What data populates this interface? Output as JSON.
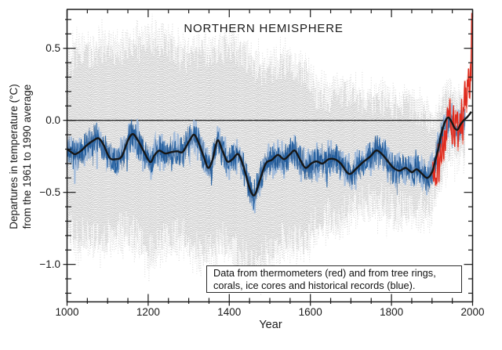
{
  "chart_data": {
    "type": "line",
    "title": "NORTHERN HEMISPHERE",
    "xlabel": "Year",
    "ylabel_line1": "Departures in temperature (°C)",
    "ylabel_line2": "from the 1961 to 1990 average",
    "legend_line1": "Data from thermometers (red) and from tree rings,",
    "legend_line2": "corals, ice cores and historical records (blue).",
    "xlim": [
      1000,
      2000
    ],
    "ylim": [
      -1.26,
      0.77
    ],
    "x_major_ticks": [
      1000,
      1200,
      1400,
      1600,
      1800,
      2000
    ],
    "x_tick_labels": [
      "1000",
      "1200",
      "1400",
      "1600",
      "1800",
      "2000"
    ],
    "x_minor_step": 50,
    "y_major_ticks": [
      0.5,
      0.0,
      -0.5,
      -1.0
    ],
    "y_tick_labels": [
      "0.5",
      "0.0",
      "−0.5",
      "−1.0"
    ],
    "y_minor_step": 0.1,
    "grid": false,
    "zero_line": 0.0,
    "legend_position": "bottom-right-inside",
    "colors": {
      "frame": "#1a1a1a",
      "zero_line": "#2b2b2b",
      "band_gray": "#c8c8c8",
      "band_fuzz": "#b4b4b4",
      "annual_blue": "#2a65a4",
      "annual_blue_light": "#9cb8da",
      "annual_blue_dark": "#1d4e87",
      "smoothed_black": "#161616",
      "instrumental_red": "#df2a1d",
      "instrumental_red_light": "#f09a8c",
      "background": "#ffffff"
    },
    "series": [
      {
        "name": "uncertainty-band",
        "type": "band",
        "label": "95% confidence range (gray)",
        "range": [
          1000,
          1980
        ],
        "jitter_seed": 5,
        "fuzz_seed": 17,
        "upper": [
          [
            1000,
            0.36
          ],
          [
            1030,
            0.44
          ],
          [
            1060,
            0.44
          ],
          [
            1090,
            0.5
          ],
          [
            1120,
            0.47
          ],
          [
            1150,
            0.49
          ],
          [
            1180,
            0.5
          ],
          [
            1210,
            0.52
          ],
          [
            1240,
            0.55
          ],
          [
            1270,
            0.44
          ],
          [
            1300,
            0.42
          ],
          [
            1330,
            0.46
          ],
          [
            1360,
            0.46
          ],
          [
            1390,
            0.49
          ],
          [
            1410,
            0.51
          ],
          [
            1435,
            0.44
          ],
          [
            1460,
            0.37
          ],
          [
            1485,
            0.32
          ],
          [
            1510,
            0.37
          ],
          [
            1540,
            0.38
          ],
          [
            1570,
            0.36
          ],
          [
            1595,
            0.3
          ],
          [
            1615,
            0.16
          ],
          [
            1640,
            0.13
          ],
          [
            1665,
            0.16
          ],
          [
            1690,
            0.18
          ],
          [
            1715,
            0.13
          ],
          [
            1740,
            0.11
          ],
          [
            1765,
            0.13
          ],
          [
            1790,
            0.11
          ],
          [
            1815,
            0.07
          ],
          [
            1840,
            0.1
          ],
          [
            1865,
            0.05
          ],
          [
            1890,
            0.0
          ],
          [
            1905,
            -0.08
          ],
          [
            1915,
            -0.02
          ],
          [
            1925,
            0.06
          ],
          [
            1935,
            0.14
          ],
          [
            1945,
            0.15
          ],
          [
            1955,
            0.1
          ],
          [
            1965,
            0.08
          ],
          [
            1972,
            0.1
          ],
          [
            1980,
            0.12
          ]
        ],
        "lower": [
          [
            1000,
            -0.72
          ],
          [
            1030,
            -0.8
          ],
          [
            1060,
            -0.77
          ],
          [
            1090,
            -0.82
          ],
          [
            1120,
            -0.77
          ],
          [
            1150,
            -0.74
          ],
          [
            1180,
            -0.82
          ],
          [
            1210,
            -0.88
          ],
          [
            1240,
            -0.82
          ],
          [
            1270,
            -0.77
          ],
          [
            1300,
            -0.82
          ],
          [
            1330,
            -0.92
          ],
          [
            1355,
            -0.86
          ],
          [
            1380,
            -0.81
          ],
          [
            1405,
            -0.86
          ],
          [
            1430,
            -0.92
          ],
          [
            1455,
            -1.0
          ],
          [
            1468,
            -1.02
          ],
          [
            1490,
            -0.91
          ],
          [
            1515,
            -0.85
          ],
          [
            1540,
            -0.8
          ],
          [
            1565,
            -0.8
          ],
          [
            1590,
            -0.83
          ],
          [
            1615,
            -0.7
          ],
          [
            1640,
            -0.64
          ],
          [
            1665,
            -0.67
          ],
          [
            1690,
            -0.63
          ],
          [
            1715,
            -0.58
          ],
          [
            1740,
            -0.55
          ],
          [
            1765,
            -0.53
          ],
          [
            1790,
            -0.57
          ],
          [
            1815,
            -0.62
          ],
          [
            1840,
            -0.57
          ],
          [
            1865,
            -0.6
          ],
          [
            1890,
            -0.62
          ],
          [
            1905,
            -0.52
          ],
          [
            1915,
            -0.44
          ],
          [
            1925,
            -0.33
          ],
          [
            1935,
            -0.22
          ],
          [
            1945,
            -0.16
          ],
          [
            1955,
            -0.18
          ],
          [
            1965,
            -0.2
          ],
          [
            1972,
            -0.17
          ],
          [
            1980,
            -0.14
          ]
        ]
      },
      {
        "name": "annual-reconstruction-blue",
        "type": "noisy-line",
        "label": "annual proxy data (blue)",
        "range": [
          1000,
          1981
        ],
        "amplitude": 0.125,
        "seed": 11,
        "light_seed": 23,
        "dark_seed": 37
      },
      {
        "name": "smoothed-reconstruction-black",
        "type": "smooth-line",
        "label": "50-year smoothed reconstruction (black)",
        "points": [
          [
            1000,
            -0.2
          ],
          [
            1010,
            -0.22
          ],
          [
            1020,
            -0.235
          ],
          [
            1035,
            -0.21
          ],
          [
            1050,
            -0.17
          ],
          [
            1065,
            -0.14
          ],
          [
            1078,
            -0.125
          ],
          [
            1090,
            -0.17
          ],
          [
            1105,
            -0.26
          ],
          [
            1120,
            -0.27
          ],
          [
            1135,
            -0.25
          ],
          [
            1150,
            -0.14
          ],
          [
            1162,
            -0.095
          ],
          [
            1175,
            -0.14
          ],
          [
            1190,
            -0.22
          ],
          [
            1205,
            -0.29
          ],
          [
            1215,
            -0.245
          ],
          [
            1227,
            -0.21
          ],
          [
            1242,
            -0.23
          ],
          [
            1258,
            -0.22
          ],
          [
            1272,
            -0.215
          ],
          [
            1285,
            -0.22
          ],
          [
            1300,
            -0.15
          ],
          [
            1313,
            -0.1
          ],
          [
            1325,
            -0.16
          ],
          [
            1338,
            -0.26
          ],
          [
            1348,
            -0.33
          ],
          [
            1358,
            -0.28
          ],
          [
            1371,
            -0.14
          ],
          [
            1383,
            -0.21
          ],
          [
            1395,
            -0.285
          ],
          [
            1408,
            -0.27
          ],
          [
            1422,
            -0.235
          ],
          [
            1435,
            -0.32
          ],
          [
            1450,
            -0.47
          ],
          [
            1462,
            -0.52
          ],
          [
            1475,
            -0.42
          ],
          [
            1490,
            -0.3
          ],
          [
            1505,
            -0.275
          ],
          [
            1520,
            -0.24
          ],
          [
            1535,
            -0.27
          ],
          [
            1550,
            -0.235
          ],
          [
            1562,
            -0.21
          ],
          [
            1575,
            -0.275
          ],
          [
            1588,
            -0.33
          ],
          [
            1602,
            -0.3
          ],
          [
            1615,
            -0.285
          ],
          [
            1630,
            -0.3
          ],
          [
            1645,
            -0.27
          ],
          [
            1660,
            -0.27
          ],
          [
            1675,
            -0.3
          ],
          [
            1690,
            -0.36
          ],
          [
            1700,
            -0.37
          ],
          [
            1715,
            -0.33
          ],
          [
            1730,
            -0.29
          ],
          [
            1748,
            -0.25
          ],
          [
            1762,
            -0.21
          ],
          [
            1775,
            -0.23
          ],
          [
            1790,
            -0.28
          ],
          [
            1805,
            -0.33
          ],
          [
            1820,
            -0.35
          ],
          [
            1835,
            -0.33
          ],
          [
            1850,
            -0.36
          ],
          [
            1862,
            -0.34
          ],
          [
            1875,
            -0.37
          ],
          [
            1888,
            -0.4
          ],
          [
            1900,
            -0.36
          ],
          [
            1908,
            -0.28
          ],
          [
            1916,
            -0.19
          ],
          [
            1924,
            -0.08
          ],
          [
            1932,
            -0.01
          ],
          [
            1940,
            0.02
          ],
          [
            1948,
            -0.01
          ],
          [
            1956,
            -0.055
          ],
          [
            1963,
            -0.065
          ],
          [
            1970,
            -0.03
          ],
          [
            1978,
            0.0
          ],
          [
            1986,
            0.02
          ],
          [
            1992,
            0.04
          ],
          [
            1997,
            0.06
          ]
        ]
      },
      {
        "name": "instrumental-red",
        "type": "line",
        "label": "thermometer data (red)",
        "range": [
          1902,
          1999
        ],
        "seed": 43,
        "light_seed": 41,
        "points": [
          [
            1902,
            -0.3
          ],
          [
            1903,
            -0.38
          ],
          [
            1904,
            -0.42
          ],
          [
            1906,
            -0.28
          ],
          [
            1907,
            -0.4
          ],
          [
            1909,
            -0.44
          ],
          [
            1910,
            -0.4
          ],
          [
            1911,
            -0.46
          ],
          [
            1913,
            -0.36
          ],
          [
            1914,
            -0.22
          ],
          [
            1915,
            -0.18
          ],
          [
            1917,
            -0.42
          ],
          [
            1918,
            -0.32
          ],
          [
            1920,
            -0.26
          ],
          [
            1921,
            -0.18
          ],
          [
            1922,
            -0.3
          ],
          [
            1924,
            -0.28
          ],
          [
            1925,
            -0.18
          ],
          [
            1926,
            -0.12
          ],
          [
            1928,
            -0.22
          ],
          [
            1929,
            -0.3
          ],
          [
            1930,
            -0.1
          ],
          [
            1931,
            -0.06
          ],
          [
            1933,
            -0.24
          ],
          [
            1934,
            -0.1
          ],
          [
            1936,
            -0.12
          ],
          [
            1937,
            0.02
          ],
          [
            1938,
            0.06
          ],
          [
            1940,
            0.02
          ],
          [
            1941,
            0.08
          ],
          [
            1942,
            0.04
          ],
          [
            1943,
            0.06
          ],
          [
            1944,
            0.14
          ],
          [
            1945,
            0.06
          ],
          [
            1946,
            -0.04
          ],
          [
            1947,
            -0.06
          ],
          [
            1949,
            -0.1
          ],
          [
            1950,
            -0.16
          ],
          [
            1951,
            -0.02
          ],
          [
            1952,
            0.04
          ],
          [
            1953,
            0.1
          ],
          [
            1954,
            -0.1
          ],
          [
            1955,
            -0.12
          ],
          [
            1956,
            -0.18
          ],
          [
            1957,
            0.0
          ],
          [
            1958,
            0.06
          ],
          [
            1959,
            0.04
          ],
          [
            1960,
            -0.02
          ],
          [
            1961,
            0.04
          ],
          [
            1962,
            0.02
          ],
          [
            1963,
            0.04
          ],
          [
            1964,
            -0.18
          ],
          [
            1965,
            -0.14
          ],
          [
            1966,
            -0.08
          ],
          [
            1967,
            -0.04
          ],
          [
            1968,
            -0.08
          ],
          [
            1969,
            0.04
          ],
          [
            1970,
            0.02
          ],
          [
            1971,
            -0.08
          ],
          [
            1972,
            -0.02
          ],
          [
            1973,
            0.12
          ],
          [
            1974,
            -0.12
          ],
          [
            1975,
            -0.02
          ],
          [
            1976,
            -0.14
          ],
          [
            1977,
            0.1
          ],
          [
            1978,
            0.04
          ],
          [
            1979,
            0.1
          ],
          [
            1980,
            0.2
          ],
          [
            1981,
            0.26
          ],
          [
            1982,
            0.1
          ],
          [
            1983,
            0.24
          ],
          [
            1984,
            0.1
          ],
          [
            1985,
            0.08
          ],
          [
            1986,
            0.14
          ],
          [
            1987,
            0.26
          ],
          [
            1988,
            0.3
          ],
          [
            1989,
            0.22
          ],
          [
            1990,
            0.36
          ],
          [
            1991,
            0.3
          ],
          [
            1992,
            0.16
          ],
          [
            1993,
            0.18
          ],
          [
            1994,
            0.26
          ],
          [
            1995,
            0.38
          ],
          [
            1996,
            0.28
          ],
          [
            1997,
            0.46
          ],
          [
            1998,
            0.72
          ],
          [
            1999,
            0.58
          ]
        ]
      }
    ]
  }
}
